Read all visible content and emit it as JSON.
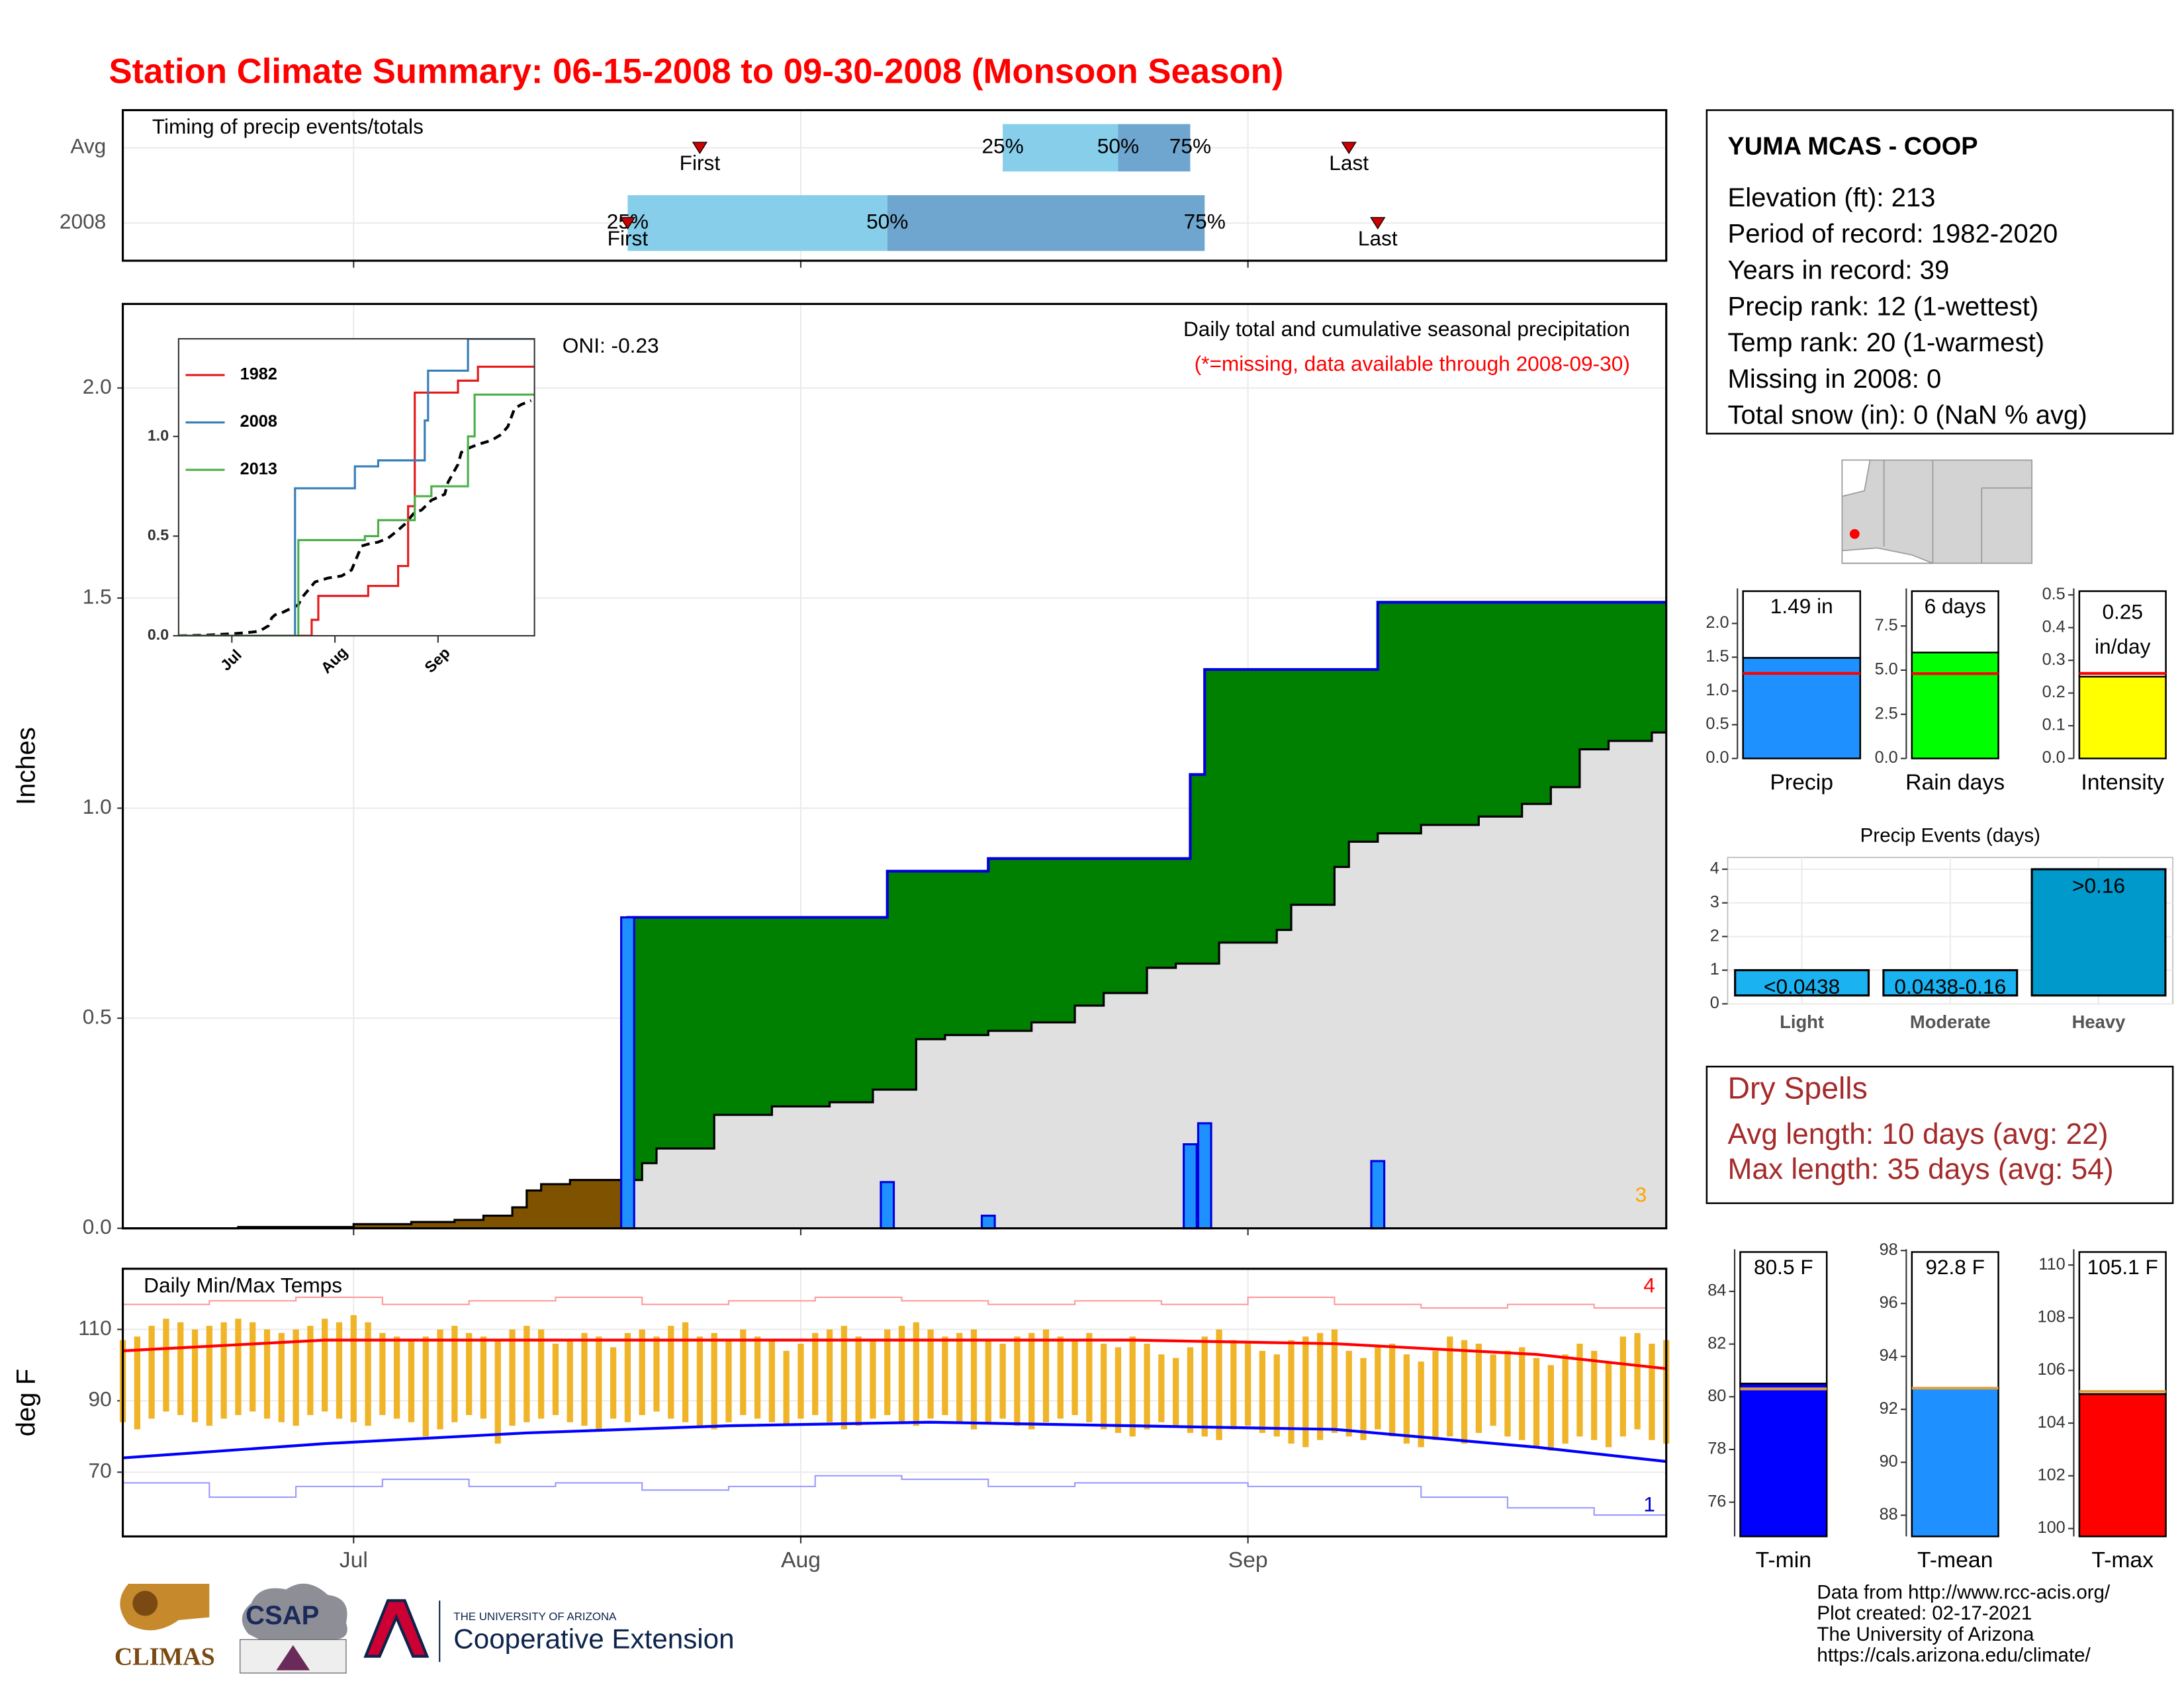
{
  "title": "Station Climate Summary: 06-15-2008 to 09-30-2008 (Monsoon Season)",
  "chart_data": [
    {
      "type": "timeline",
      "title": "Timing of precip events/totals",
      "xlim": [
        167,
        274
      ],
      "xticks": [
        183,
        214,
        245
      ],
      "series": [
        {
          "name": "Avg",
          "first": 207,
          "percentiles": [
            228,
            236,
            241
          ],
          "last": 252
        },
        {
          "name": "2008",
          "first": 202,
          "percentiles": [
            202,
            220,
            242
          ],
          "last": 254
        }
      ],
      "percentile_labels": [
        "25%",
        "50%",
        "75%"
      ],
      "marker_labels": [
        "First",
        "Last"
      ],
      "colors": [
        "#87ceeb",
        "#6fa6cf"
      ],
      "marker_color": "#cc0000"
    },
    {
      "type": "area",
      "title": "Daily total and cumulative seasonal precipitation",
      "note": "(*=missing, data available through 2008-09-30)",
      "annotation": "ONI: -0.23",
      "corner_label": "3",
      "ylabel": "Inches",
      "xlim": [
        167,
        274
      ],
      "xticks": [
        183,
        214,
        245
      ],
      "ylim": [
        0,
        2.2
      ],
      "yticks": [
        {
          "value": 0,
          "label": "0.0"
        },
        {
          "value": 0.5,
          "label": "0.5"
        },
        {
          "value": 1,
          "label": "1.0"
        },
        {
          "value": 1.5,
          "label": "1.5"
        },
        {
          "value": 2,
          "label": "2.0"
        }
      ],
      "grid": true,
      "daily_x": [
        202,
        220,
        227,
        241,
        242,
        254
      ],
      "daily_values": [
        0.74,
        0.11,
        0.03,
        0.2,
        0.25,
        0.16
      ],
      "avg_x": [
        167,
        175,
        183,
        187,
        190,
        192,
        194,
        195,
        196,
        198,
        203,
        204,
        208,
        212,
        216,
        219,
        222,
        224,
        227,
        230,
        233,
        235,
        238,
        240,
        243,
        247,
        248,
        251,
        252,
        254,
        257,
        261,
        264,
        266,
        268,
        270,
        273
      ],
      "avg_values": [
        0,
        0.003,
        0.01,
        0.015,
        0.02,
        0.03,
        0.05,
        0.09,
        0.105,
        0.115,
        0.155,
        0.19,
        0.27,
        0.29,
        0.3,
        0.33,
        0.45,
        0.46,
        0.47,
        0.49,
        0.53,
        0.56,
        0.62,
        0.63,
        0.68,
        0.71,
        0.77,
        0.86,
        0.92,
        0.94,
        0.96,
        0.98,
        1.01,
        1.05,
        1.14,
        1.16,
        1.18
      ],
      "colors": {
        "above": "#008000",
        "below": "#7f5200",
        "avg": "#e0e0e0",
        "bars": "#1e90ff",
        "line": "#0000dd"
      }
    },
    {
      "type": "line",
      "xlim": [
        167,
        274
      ],
      "ylim": [
        0,
        1.49
      ],
      "xticks": [
        {
          "value": 183,
          "label": "Jul"
        },
        {
          "value": 214,
          "label": "Aug"
        },
        {
          "value": 245,
          "label": "Sep"
        }
      ],
      "yticks": [
        {
          "value": 0,
          "label": "0.0"
        },
        {
          "value": 0.5,
          "label": "0.5"
        },
        {
          "value": 1,
          "label": "1.0"
        }
      ],
      "series": [
        {
          "name": "1982",
          "color": "#e41a1c",
          "x": [
            167,
            206,
            207,
            209,
            224,
            233,
            236,
            238,
            251,
            257,
            274
          ],
          "values": [
            0,
            0,
            0.08,
            0.2,
            0.25,
            0.35,
            0.65,
            1.22,
            1.28,
            1.35,
            1.35
          ]
        },
        {
          "name": "2008",
          "color": "#377eb8",
          "x": [
            167,
            202,
            220,
            227,
            241,
            242,
            254,
            274
          ],
          "values": [
            0,
            0.74,
            0.85,
            0.88,
            1.08,
            1.33,
            1.49,
            1.49
          ]
        },
        {
          "name": "2013",
          "color": "#4daf4a",
          "x": [
            167,
            202,
            203,
            223,
            227,
            238,
            243,
            254,
            256,
            274
          ],
          "values": [
            0,
            0,
            0.48,
            0.5,
            0.58,
            0.7,
            0.75,
            1.0,
            1.21,
            1.21
          ]
        }
      ]
    },
    {
      "type": "range",
      "title": "Daily Min/Max Temps",
      "ylabel": "deg F",
      "xlim": [
        167,
        274
      ],
      "ylim": [
        52,
        127
      ],
      "xticks": [
        {
          "value": 183,
          "label": "Jul"
        },
        {
          "value": 214,
          "label": "Aug"
        },
        {
          "value": 245,
          "label": "Sep"
        }
      ],
      "yticks": [
        70,
        90,
        110
      ],
      "grid": true,
      "bar_color": "#f0b429",
      "annotations": [
        {
          "text": "4",
          "color": "#ff0000"
        },
        {
          "text": "1",
          "color": "#0000cc"
        }
      ],
      "x": [
        167,
        168,
        169,
        170,
        171,
        172,
        173,
        174,
        175,
        176,
        177,
        178,
        179,
        180,
        181,
        182,
        183,
        184,
        185,
        186,
        187,
        188,
        189,
        190,
        191,
        192,
        193,
        194,
        195,
        196,
        197,
        198,
        199,
        200,
        201,
        202,
        203,
        204,
        205,
        206,
        207,
        208,
        209,
        210,
        211,
        212,
        213,
        214,
        215,
        216,
        217,
        218,
        219,
        220,
        221,
        222,
        223,
        224,
        225,
        226,
        227,
        228,
        229,
        230,
        231,
        232,
        233,
        234,
        235,
        236,
        237,
        238,
        239,
        240,
        241,
        242,
        243,
        244,
        245,
        246,
        247,
        248,
        249,
        250,
        251,
        252,
        253,
        254,
        255,
        256,
        257,
        258,
        259,
        260,
        261,
        262,
        263,
        264,
        265,
        266,
        267,
        268,
        269,
        270,
        271,
        272,
        273,
        274
      ],
      "max": [
        107,
        108,
        111,
        113,
        112,
        110,
        111,
        112,
        113,
        112,
        110,
        109,
        110,
        111,
        113,
        112,
        114,
        112,
        109,
        108,
        107,
        108,
        110,
        111,
        109,
        108,
        107,
        110,
        111,
        110,
        106,
        107,
        109,
        108,
        105,
        109,
        110,
        108,
        111,
        112,
        108,
        109,
        107,
        110,
        108,
        107,
        104,
        106,
        109,
        110,
        111,
        108,
        107,
        110,
        111,
        112,
        110,
        108,
        109,
        110,
        107,
        106,
        108,
        109,
        110,
        108,
        107,
        109,
        106,
        105,
        108,
        106,
        103,
        102,
        105,
        108,
        110,
        107,
        106,
        104,
        103,
        107,
        108,
        109,
        110,
        104,
        102,
        105,
        106,
        103,
        101,
        104,
        108,
        107,
        106,
        103,
        104,
        105,
        102,
        100,
        103,
        106,
        104,
        101,
        108,
        109,
        106,
        107
      ],
      "min": [
        84,
        82,
        85,
        87,
        86,
        84,
        83,
        85,
        86,
        87,
        85,
        84,
        83,
        86,
        87,
        85,
        84,
        83,
        86,
        85,
        84,
        80,
        82,
        84,
        86,
        85,
        78,
        83,
        84,
        85,
        86,
        84,
        83,
        82,
        85,
        84,
        86,
        87,
        85,
        84,
        83,
        82,
        84,
        86,
        85,
        84,
        83,
        85,
        86,
        84,
        82,
        83,
        85,
        86,
        84,
        83,
        85,
        86,
        84,
        82,
        84,
        85,
        83,
        82,
        84,
        85,
        86,
        84,
        82,
        81,
        80,
        82,
        84,
        83,
        81,
        80,
        79,
        82,
        83,
        81,
        80,
        78,
        77,
        79,
        81,
        80,
        79,
        82,
        80,
        78,
        77,
        79,
        80,
        78,
        81,
        83,
        80,
        79,
        77,
        76,
        78,
        80,
        79,
        77,
        80,
        82,
        79,
        78
      ],
      "series": [
        {
          "color": "#ff9a9a",
          "width": 1,
          "step": true,
          "x": [
            167,
            173,
            179,
            185,
            191,
            197,
            203,
            209,
            215,
            221,
            227,
            233,
            239,
            245,
            251,
            257,
            263,
            269,
            274
          ],
          "values": [
            117,
            118,
            119,
            117,
            118,
            119,
            117,
            118,
            119,
            118,
            117,
            118,
            117,
            119,
            117,
            116,
            117,
            116,
            115
          ]
        },
        {
          "color": "#9a9aff",
          "width": 1,
          "step": true,
          "x": [
            167,
            173,
            179,
            185,
            191,
            197,
            203,
            209,
            215,
            221,
            227,
            233,
            239,
            245,
            251,
            257,
            263,
            269,
            274
          ],
          "values": [
            67,
            63,
            66,
            68,
            66,
            67,
            65,
            66,
            69,
            68,
            66,
            67,
            67,
            66,
            66,
            63,
            60,
            58,
            57
          ]
        },
        {
          "color": "#ff0000",
          "width": 2,
          "step": false,
          "x": [
            167,
            181,
            195,
            209,
            223,
            237,
            251,
            265,
            274
          ],
          "values": [
            104,
            107,
            107,
            107,
            107,
            107,
            106,
            103,
            99
          ]
        },
        {
          "color": "#0000ff",
          "width": 2,
          "step": false,
          "x": [
            167,
            181,
            195,
            209,
            223,
            237,
            251,
            265,
            274
          ],
          "values": [
            74,
            78,
            81,
            83,
            84,
            83,
            82,
            77,
            73
          ]
        }
      ]
    },
    {
      "type": "bar",
      "categories": [
        "Precip"
      ],
      "values": [
        1.49
      ],
      "value_labels": [
        "1.49 in"
      ],
      "average": 1.26,
      "ylim": [
        0,
        2.52
      ],
      "yticks": [
        {
          "value": 0,
          "label": "0.0"
        },
        {
          "value": 0.5,
          "label": "0.5"
        },
        {
          "value": 1,
          "label": "1.0"
        },
        {
          "value": 1.5,
          "label": "1.5"
        },
        {
          "value": 2,
          "label": "2.0"
        }
      ],
      "color": "#1e90ff",
      "average_color": "#ff0000"
    },
    {
      "type": "bar",
      "categories": [
        "Rain days"
      ],
      "values": [
        6
      ],
      "value_labels": [
        "6 days"
      ],
      "average": 4.8,
      "ylim": [
        0,
        9.63
      ],
      "yticks": [
        {
          "value": 0,
          "label": "0.0"
        },
        {
          "value": 2.5,
          "label": "2.5"
        },
        {
          "value": 5,
          "label": "5.0"
        },
        {
          "value": 7.5,
          "label": "7.5"
        }
      ],
      "color": "#00ff00",
      "average_color": "#ff0000"
    },
    {
      "type": "bar",
      "categories": [
        "Intensity"
      ],
      "values": [
        0.25
      ],
      "value_labels": [
        "0.25 in/day"
      ],
      "average": 0.26,
      "ylim": [
        0,
        0.52
      ],
      "yticks": [
        {
          "value": 0,
          "label": "0.0"
        },
        0.1,
        0.2,
        0.3,
        0.4,
        0.5
      ],
      "color": "#ffff00",
      "average_color": "#ff0000"
    },
    {
      "type": "bar",
      "title": "Precip Events (days)",
      "categories": [
        "Light",
        "Moderate",
        "Heavy"
      ],
      "values": [
        1,
        1,
        4
      ],
      "bin_labels": [
        "<0.0438",
        "0.0438-0.16",
        ">0.16"
      ],
      "ylim": [
        0,
        4.35
      ],
      "yticks": [
        0,
        1,
        2,
        3,
        4
      ],
      "grid": true,
      "colors": [
        "#1ab2f0",
        "#1ab2f0",
        "#0099cc"
      ]
    },
    {
      "type": "bar",
      "categories": [
        "T-min"
      ],
      "values": [
        80.5
      ],
      "value_labels": [
        "80.5 F"
      ],
      "average": 80.3,
      "ylim": [
        74.7,
        85.6
      ],
      "yticks": [
        76,
        78,
        80,
        82,
        84
      ],
      "color": "#0000ff",
      "average_color": "#e0a040"
    },
    {
      "type": "bar",
      "categories": [
        "T-mean"
      ],
      "values": [
        92.8
      ],
      "value_labels": [
        "92.8 F"
      ],
      "average": 92.8,
      "ylim": [
        87.2,
        98.05
      ],
      "yticks": [
        88,
        90,
        92,
        94,
        96,
        98
      ],
      "color": "#1e90ff",
      "average_color": "#e0a040"
    },
    {
      "type": "bar",
      "categories": [
        "T-max"
      ],
      "values": [
        105.1
      ],
      "value_labels": [
        "105.1 F"
      ],
      "average": 105.2,
      "ylim": [
        99.7,
        110.6
      ],
      "yticks": [
        100,
        102,
        104,
        106,
        108,
        110
      ],
      "color": "#ff0000",
      "average_color": "#e0a040"
    }
  ],
  "station": {
    "name": "YUMA MCAS - COOP",
    "lines": [
      "Elevation (ft): 213",
      "Period of record: 1982-2020",
      "Years in record: 39",
      "Precip rank: 12 (1-wettest)",
      "Temp rank: 20 (1-warmest)",
      "Missing in 2008: 0",
      "Total snow (in): 0 (NaN % avg)"
    ]
  },
  "dry_spells": {
    "title": "Dry Spells",
    "lines": [
      "Avg length: 10 days (avg: 22)",
      "Max length: 35 days (avg: 54)"
    ]
  },
  "footer": {
    "logos": [
      "CLIMAS",
      "CSAP",
      "THE UNIVERSITY OF ARIZONA",
      "Cooperative Extension"
    ],
    "credits": [
      "Data from http://www.rcc-acis.org/",
      "Plot created: 02-17-2021",
      "The University of Arizona",
      "https://cals.arizona.edu/climate/"
    ]
  }
}
